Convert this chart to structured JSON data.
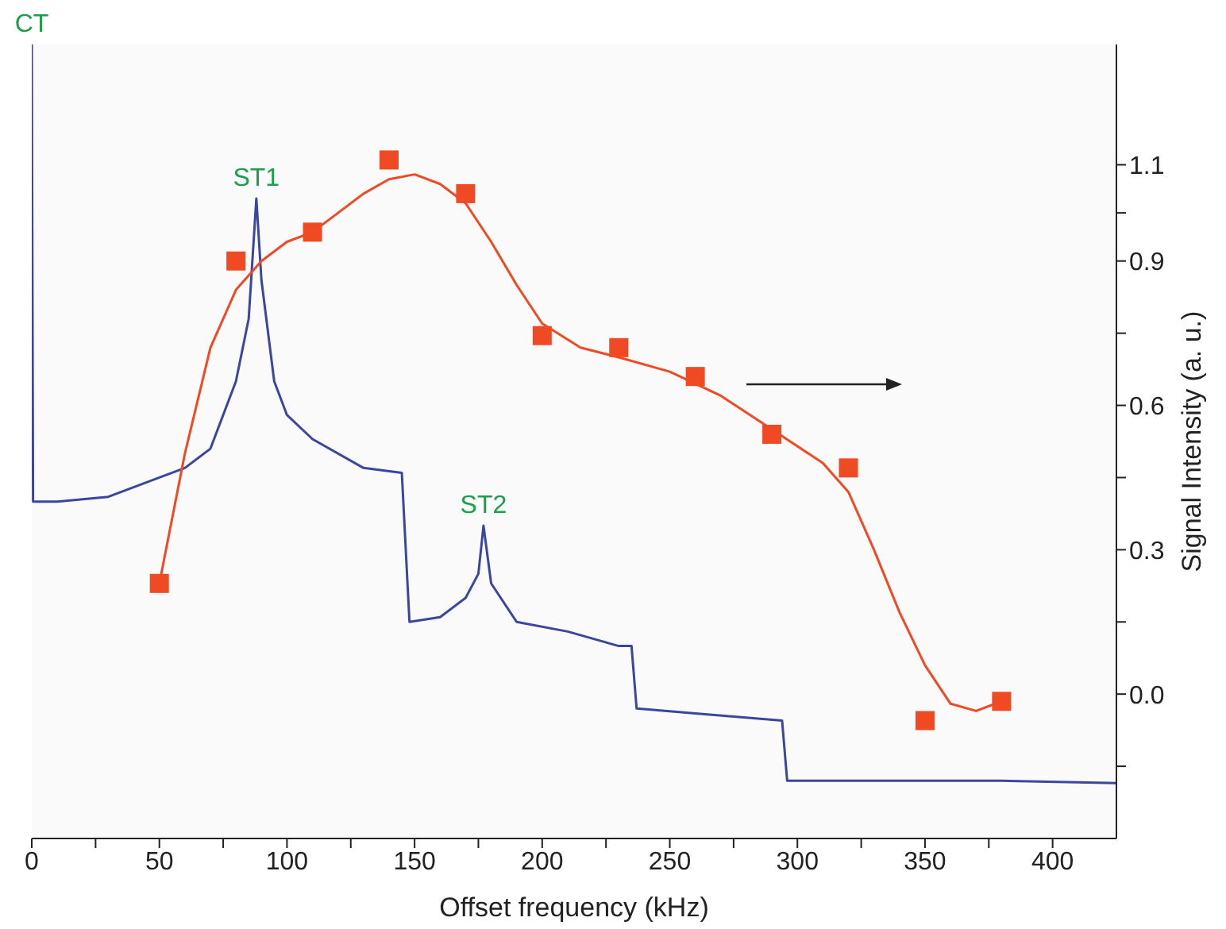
{
  "chart_data": {
    "type": "line",
    "xlabel": "Offset frequency (kHz)",
    "ylabel": "Signal Intensity (a. u.)",
    "xlim": [
      0,
      425
    ],
    "xticks": [
      0,
      {
        "value": 25,
        "label": null
      },
      50,
      {
        "value": 75,
        "label": null
      },
      100,
      {
        "value": 125,
        "label": null
      },
      150,
      {
        "value": 175,
        "label": null
      },
      200,
      {
        "value": 225,
        "label": null
      },
      250,
      {
        "value": 275,
        "label": null
      },
      300,
      {
        "value": 325,
        "label": null
      },
      350,
      {
        "value": 375,
        "label": null
      },
      400
    ],
    "ylim": [
      -0.3,
      1.35
    ],
    "yticks": [
      {
        "value": -0.15,
        "label": null
      },
      {
        "value": 0,
        "label": "0.0"
      },
      {
        "value": 0.15,
        "label": null
      },
      0.3,
      {
        "value": 0.45,
        "label": null
      },
      0.6,
      {
        "value": 0.75,
        "label": null
      },
      0.9,
      {
        "value": 1.0,
        "label": null
      },
      1.1
    ],
    "series": [
      {
        "color": "#3a46a0",
        "marker": "none",
        "x": [
          0,
          0.5,
          10,
          30,
          50,
          60,
          70,
          80,
          85,
          88,
          90,
          95,
          100,
          110,
          130,
          145,
          148,
          160,
          170,
          175,
          177,
          180,
          190,
          210,
          230,
          235,
          237,
          260,
          294,
          296,
          380,
          425
        ],
        "values": [
          1.35,
          0.4,
          0.4,
          0.41,
          0.45,
          0.47,
          0.51,
          0.65,
          0.78,
          1.03,
          0.86,
          0.65,
          0.58,
          0.53,
          0.47,
          0.46,
          0.15,
          0.16,
          0.2,
          0.25,
          0.35,
          0.23,
          0.15,
          0.13,
          0.1,
          0.1,
          -0.03,
          -0.04,
          -0.055,
          -0.18,
          -0.18,
          -0.185
        ]
      },
      {
        "color": "#ef4a23",
        "marker": "none",
        "x": [
          50,
          60,
          70,
          80,
          90,
          100,
          110,
          120,
          130,
          140,
          150,
          160,
          170,
          180,
          190,
          200,
          215,
          230,
          250,
          270,
          290,
          310,
          320,
          330,
          340,
          350,
          360,
          370,
          380
        ],
        "values": [
          0.23,
          0.5,
          0.72,
          0.84,
          0.9,
          0.94,
          0.96,
          1.0,
          1.04,
          1.07,
          1.08,
          1.06,
          1.02,
          0.94,
          0.85,
          0.77,
          0.72,
          0.7,
          0.67,
          0.62,
          0.55,
          0.48,
          0.42,
          0.3,
          0.17,
          0.06,
          -0.02,
          -0.035,
          -0.015
        ]
      },
      {
        "type": "scatter",
        "color": "#ef4a23",
        "marker": "square",
        "x": [
          50,
          80,
          110,
          140,
          170,
          200,
          230,
          260,
          290,
          320,
          350,
          380
        ],
        "values": [
          0.23,
          0.9,
          0.96,
          1.11,
          1.04,
          0.745,
          0.72,
          0.66,
          0.54,
          0.47,
          -0.055,
          -0.015
        ]
      }
    ],
    "annotations": [
      {
        "text": "CT",
        "x": 0,
        "y": 1.35
      },
      {
        "text": "ST1",
        "x": 88,
        "y": 1.03
      },
      {
        "text": "ST2",
        "x": 177,
        "y": 0.35
      }
    ]
  }
}
